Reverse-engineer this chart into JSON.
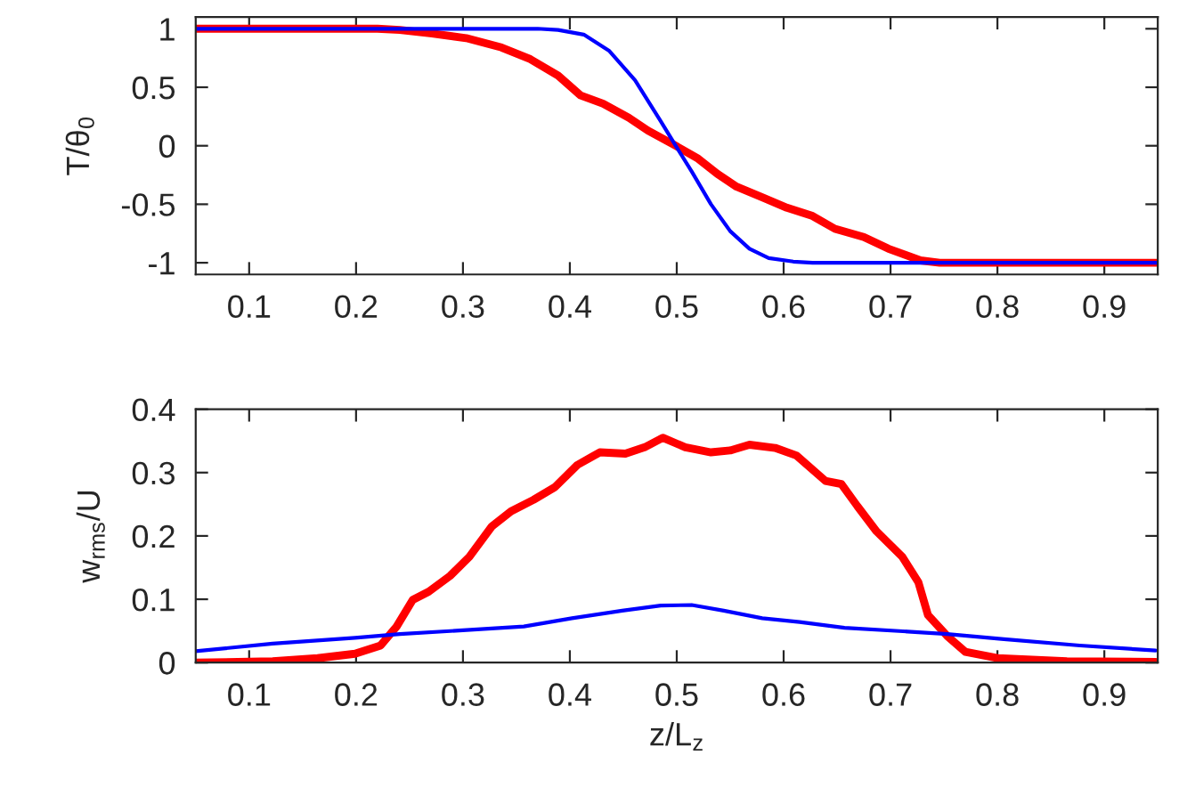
{
  "chart_data": [
    {
      "type": "line",
      "ylabel": "T/θ$_{0}$",
      "xlim": [
        0.05,
        0.95
      ],
      "xticks": [
        0.1,
        0.2,
        0.3,
        0.4,
        0.5,
        0.6,
        0.7,
        0.8,
        0.9
      ],
      "ylim": [
        -1.1,
        1.1
      ],
      "yticks": [
        -1,
        -0.5,
        0,
        0.5,
        1
      ],
      "grid": false,
      "legend": false,
      "marker": "none",
      "line_style": "solid",
      "series": [
        {
          "color": "#ff0000",
          "x": [
            0.05,
            0.22,
            0.241,
            0.271,
            0.303,
            0.336,
            0.363,
            0.389,
            0.41,
            0.431,
            0.455,
            0.473,
            0.499,
            0.52,
            0.538,
            0.556,
            0.58,
            0.603,
            0.627,
            0.648,
            0.675,
            0.698,
            0.728,
            0.746,
            0.95
          ],
          "values": [
            1,
            1,
            0.99,
            0.96,
            0.92,
            0.84,
            0.74,
            0.6,
            0.43,
            0.36,
            0.24,
            0.13,
            0,
            -0.11,
            -0.24,
            -0.35,
            -0.44,
            -0.53,
            -0.6,
            -0.71,
            -0.78,
            -0.88,
            -0.98,
            -1,
            -1
          ]
        },
        {
          "color": "#0000ff",
          "x": [
            0.05,
            0.37,
            0.389,
            0.413,
            0.437,
            0.461,
            0.485,
            0.499,
            0.514,
            0.532,
            0.55,
            0.568,
            0.586,
            0.609,
            0.627,
            0.95
          ],
          "values": [
            1,
            1,
            0.99,
            0.95,
            0.81,
            0.56,
            0.21,
            0,
            -0.22,
            -0.5,
            -0.73,
            -0.88,
            -0.96,
            -0.99,
            -1,
            -1
          ]
        }
      ]
    },
    {
      "type": "line",
      "ylabel": "w$_{rms}$/U",
      "xlabel": "z/L$_{z}$",
      "xlim": [
        0.05,
        0.95
      ],
      "xticks": [
        0.1,
        0.2,
        0.3,
        0.4,
        0.5,
        0.6,
        0.7,
        0.8,
        0.9
      ],
      "ylim": [
        0,
        0.4
      ],
      "yticks": [
        0,
        0.1,
        0.2,
        0.3,
        0.4
      ],
      "grid": false,
      "legend": false,
      "marker": "none",
      "line_style": "solid",
      "series": [
        {
          "color": "#ff0000",
          "x": [
            0.05,
            0.122,
            0.164,
            0.199,
            0.223,
            0.238,
            0.253,
            0.268,
            0.288,
            0.306,
            0.327,
            0.345,
            0.366,
            0.386,
            0.407,
            0.428,
            0.452,
            0.47,
            0.487,
            0.508,
            0.532,
            0.55,
            0.568,
            0.592,
            0.612,
            0.639,
            0.654,
            0.669,
            0.687,
            0.711,
            0.726,
            0.735,
            0.753,
            0.77,
            0.8,
            0.865,
            0.948
          ],
          "values": [
            0,
            0.002,
            0.007,
            0.014,
            0.027,
            0.057,
            0.099,
            0.112,
            0.137,
            0.167,
            0.215,
            0.239,
            0.257,
            0.277,
            0.312,
            0.332,
            0.33,
            0.34,
            0.355,
            0.34,
            0.332,
            0.335,
            0.344,
            0.339,
            0.327,
            0.287,
            0.282,
            0.247,
            0.207,
            0.167,
            0.127,
            0.075,
            0.042,
            0.017,
            0.007,
            0.002,
            0.001
          ]
        },
        {
          "color": "#0000ff",
          "x": [
            0.05,
            0.122,
            0.199,
            0.241,
            0.3,
            0.357,
            0.402,
            0.449,
            0.485,
            0.514,
            0.544,
            0.58,
            0.615,
            0.657,
            0.716,
            0.753,
            0.806,
            0.877,
            0.948
          ],
          "values": [
            0.018,
            0.03,
            0.039,
            0.045,
            0.051,
            0.057,
            0.07,
            0.082,
            0.09,
            0.091,
            0.082,
            0.07,
            0.064,
            0.055,
            0.049,
            0.045,
            0.037,
            0.027,
            0.019
          ]
        }
      ]
    }
  ]
}
